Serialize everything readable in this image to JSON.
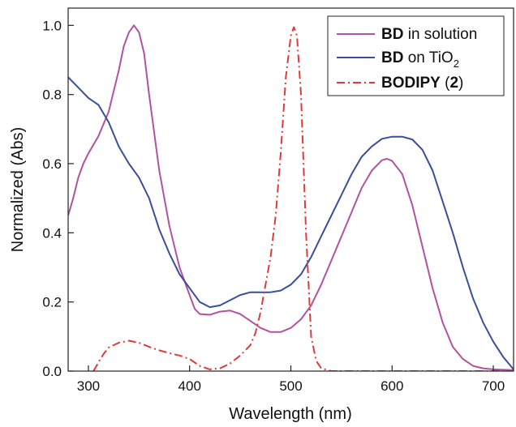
{
  "chart_data": {
    "type": "line",
    "title": "",
    "xlabel": "Wavelength (nm)",
    "ylabel": "Normalized (Abs)",
    "xlim": [
      280,
      720
    ],
    "ylim": [
      0.0,
      1.05
    ],
    "x_ticks": [
      300,
      400,
      500,
      600,
      700
    ],
    "y_ticks": [
      0.0,
      0.2,
      0.4,
      0.6,
      0.8,
      1.0
    ],
    "x_tick_labels": [
      "300",
      "400",
      "500",
      "600",
      "700"
    ],
    "y_tick_labels": [
      "0.0",
      "0.2",
      "0.4",
      "0.6",
      "0.8",
      "1.0"
    ],
    "grid": false,
    "legend_position": "top-right",
    "series": [
      {
        "key": "solution",
        "legend_bold": "BD",
        "legend_rest": " in solution",
        "legend_sub": "",
        "color": "#b3529e",
        "dash": "solid",
        "points": [
          [
            280,
            0.45
          ],
          [
            285,
            0.5
          ],
          [
            290,
            0.56
          ],
          [
            295,
            0.6
          ],
          [
            300,
            0.63
          ],
          [
            310,
            0.68
          ],
          [
            320,
            0.75
          ],
          [
            330,
            0.87
          ],
          [
            335,
            0.94
          ],
          [
            340,
            0.98
          ],
          [
            345,
            1.0
          ],
          [
            350,
            0.98
          ],
          [
            355,
            0.92
          ],
          [
            360,
            0.8
          ],
          [
            370,
            0.58
          ],
          [
            380,
            0.42
          ],
          [
            390,
            0.3
          ],
          [
            400,
            0.22
          ],
          [
            405,
            0.18
          ],
          [
            410,
            0.165
          ],
          [
            420,
            0.163
          ],
          [
            430,
            0.172
          ],
          [
            440,
            0.175
          ],
          [
            450,
            0.165
          ],
          [
            460,
            0.145
          ],
          [
            470,
            0.125
          ],
          [
            480,
            0.113
          ],
          [
            490,
            0.113
          ],
          [
            500,
            0.125
          ],
          [
            510,
            0.15
          ],
          [
            520,
            0.19
          ],
          [
            530,
            0.25
          ],
          [
            540,
            0.32
          ],
          [
            550,
            0.39
          ],
          [
            560,
            0.46
          ],
          [
            570,
            0.53
          ],
          [
            580,
            0.58
          ],
          [
            590,
            0.61
          ],
          [
            595,
            0.614
          ],
          [
            600,
            0.608
          ],
          [
            610,
            0.57
          ],
          [
            620,
            0.48
          ],
          [
            630,
            0.36
          ],
          [
            640,
            0.24
          ],
          [
            650,
            0.14
          ],
          [
            660,
            0.07
          ],
          [
            670,
            0.035
          ],
          [
            680,
            0.015
          ],
          [
            690,
            0.008
          ],
          [
            700,
            0.005
          ],
          [
            720,
            0.003
          ]
        ]
      },
      {
        "key": "tio2",
        "legend_bold": "BD",
        "legend_rest": " on TiO",
        "legend_sub": "2",
        "color": "#3a4f9c",
        "dash": "solid",
        "points": [
          [
            280,
            0.85
          ],
          [
            290,
            0.82
          ],
          [
            300,
            0.79
          ],
          [
            310,
            0.77
          ],
          [
            320,
            0.72
          ],
          [
            330,
            0.65
          ],
          [
            340,
            0.6
          ],
          [
            350,
            0.56
          ],
          [
            360,
            0.5
          ],
          [
            370,
            0.41
          ],
          [
            380,
            0.34
          ],
          [
            390,
            0.28
          ],
          [
            400,
            0.24
          ],
          [
            410,
            0.2
          ],
          [
            420,
            0.185
          ],
          [
            430,
            0.19
          ],
          [
            440,
            0.205
          ],
          [
            450,
            0.22
          ],
          [
            460,
            0.228
          ],
          [
            470,
            0.228
          ],
          [
            480,
            0.228
          ],
          [
            490,
            0.233
          ],
          [
            500,
            0.25
          ],
          [
            510,
            0.28
          ],
          [
            520,
            0.33
          ],
          [
            530,
            0.39
          ],
          [
            540,
            0.45
          ],
          [
            550,
            0.51
          ],
          [
            560,
            0.57
          ],
          [
            570,
            0.62
          ],
          [
            580,
            0.65
          ],
          [
            590,
            0.672
          ],
          [
            600,
            0.678
          ],
          [
            610,
            0.678
          ],
          [
            620,
            0.67
          ],
          [
            630,
            0.64
          ],
          [
            640,
            0.58
          ],
          [
            650,
            0.49
          ],
          [
            660,
            0.4
          ],
          [
            670,
            0.3
          ],
          [
            680,
            0.21
          ],
          [
            690,
            0.14
          ],
          [
            700,
            0.085
          ],
          [
            710,
            0.04
          ],
          [
            720,
            0.005
          ]
        ]
      },
      {
        "key": "bodipy",
        "legend_bold": "BODIPY",
        "legend_rest": " (",
        "legend_num": "2",
        "legend_close": ")",
        "legend_sub": "",
        "color": "#e03a3a",
        "dash": "dashdot",
        "points": [
          [
            305,
            0.0
          ],
          [
            310,
            0.025
          ],
          [
            315,
            0.05
          ],
          [
            320,
            0.068
          ],
          [
            330,
            0.082
          ],
          [
            340,
            0.088
          ],
          [
            350,
            0.082
          ],
          [
            360,
            0.07
          ],
          [
            370,
            0.06
          ],
          [
            380,
            0.052
          ],
          [
            390,
            0.045
          ],
          [
            400,
            0.035
          ],
          [
            410,
            0.015
          ],
          [
            420,
            0.005
          ],
          [
            430,
            0.008
          ],
          [
            440,
            0.022
          ],
          [
            450,
            0.045
          ],
          [
            460,
            0.075
          ],
          [
            465,
            0.11
          ],
          [
            470,
            0.17
          ],
          [
            475,
            0.25
          ],
          [
            480,
            0.33
          ],
          [
            485,
            0.45
          ],
          [
            490,
            0.63
          ],
          [
            495,
            0.85
          ],
          [
            500,
            0.97
          ],
          [
            503,
            0.995
          ],
          [
            506,
            0.97
          ],
          [
            510,
            0.8
          ],
          [
            515,
            0.4
          ],
          [
            520,
            0.1
          ],
          [
            525,
            0.03
          ],
          [
            530,
            0.008
          ],
          [
            540,
            0.0
          ],
          [
            720,
            0.0
          ]
        ]
      }
    ]
  }
}
